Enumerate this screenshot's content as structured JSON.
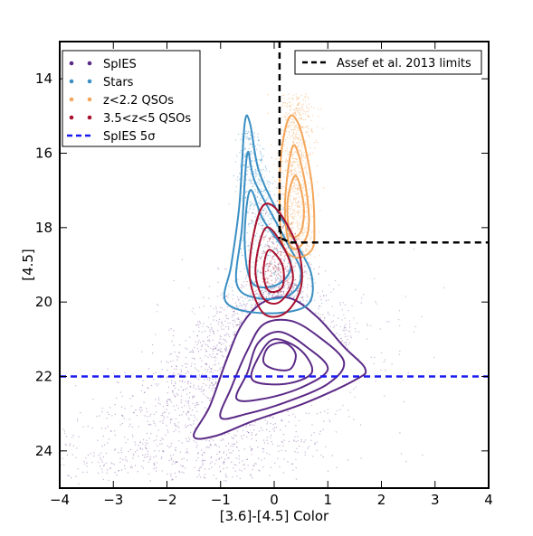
{
  "chart_data": {
    "type": "scatter",
    "title": "",
    "xlabel": "[3.6]-[4.5] Color",
    "ylabel": "[4.5]",
    "xlim": [
      -4,
      4
    ],
    "ylim": [
      25,
      13
    ],
    "y_inverted": true,
    "grid": false,
    "x_ticks": [
      -4,
      -3,
      -2,
      -1,
      0,
      1,
      2,
      3,
      4
    ],
    "x_tick_labels": [
      "−4",
      "−3",
      "−2",
      "−1",
      "0",
      "1",
      "2",
      "3",
      "4"
    ],
    "y_ticks": [
      14,
      16,
      18,
      20,
      22,
      24
    ],
    "y_tick_labels": [
      "14",
      "16",
      "18",
      "20",
      "22",
      "24"
    ],
    "legend_left": {
      "placement": "top-left",
      "entries": [
        {
          "label": "SpIES",
          "color": "#5b2a86",
          "marker": "dots"
        },
        {
          "label": "Stars",
          "color": "#3a8fc4",
          "marker": "dots"
        },
        {
          "label": "z<2.2 QSOs",
          "color": "#f4a65a",
          "marker": "dots"
        },
        {
          "label": "3.5<z<5 QSOs",
          "color": "#a8102e",
          "marker": "dots"
        },
        {
          "label": "SpIES 5σ",
          "color": "#1a1af0",
          "marker": "dashed"
        }
      ]
    },
    "legend_right": {
      "placement": "top-right",
      "entries": [
        {
          "label": "Assef et al. 2013 limits",
          "color": "#000000",
          "marker": "dashed"
        }
      ]
    },
    "series": [
      {
        "name": "SpIES",
        "color": "#5b2a86",
        "kind": "density-contours",
        "contours": [
          [
            [
              -1.5,
              23.6
            ],
            [
              -1.2,
              22.8
            ],
            [
              -0.9,
              21.6
            ],
            [
              -0.6,
              20.6
            ],
            [
              -0.2,
              20.0
            ],
            [
              0.3,
              19.9
            ],
            [
              0.8,
              20.4
            ],
            [
              1.3,
              21.2
            ],
            [
              1.7,
              21.8
            ],
            [
              1.5,
              22.1
            ],
            [
              0.6,
              22.7
            ],
            [
              -0.4,
              23.2
            ],
            [
              -1.1,
              23.6
            ]
          ],
          [
            [
              -1.0,
              23.1
            ],
            [
              -0.8,
              22.3
            ],
            [
              -0.5,
              21.3
            ],
            [
              -0.2,
              20.6
            ],
            [
              0.3,
              20.5
            ],
            [
              0.8,
              20.9
            ],
            [
              1.3,
              21.6
            ],
            [
              1.0,
              22.2
            ],
            [
              0.2,
              22.7
            ],
            [
              -0.5,
              23.0
            ]
          ],
          [
            [
              -0.7,
              22.6
            ],
            [
              -0.5,
              21.9
            ],
            [
              -0.3,
              21.1
            ],
            [
              0.1,
              20.8
            ],
            [
              0.6,
              21.2
            ],
            [
              1.0,
              21.8
            ],
            [
              0.5,
              22.3
            ],
            [
              -0.2,
              22.6
            ]
          ],
          [
            [
              -0.4,
              22.1
            ],
            [
              -0.3,
              21.5
            ],
            [
              0.0,
              21.0
            ],
            [
              0.5,
              21.3
            ],
            [
              0.7,
              21.9
            ],
            [
              0.2,
              22.2
            ]
          ],
          [
            [
              -0.2,
              21.6
            ],
            [
              -0.1,
              21.2
            ],
            [
              0.2,
              21.1
            ],
            [
              0.4,
              21.4
            ],
            [
              0.3,
              21.8
            ],
            [
              0.0,
              21.8
            ]
          ]
        ]
      },
      {
        "name": "Stars",
        "color": "#3a8fc4",
        "kind": "density-contours",
        "contours": [
          [
            [
              -0.55,
              15.2
            ],
            [
              -0.45,
              15.2
            ],
            [
              -0.3,
              16.4
            ],
            [
              0.0,
              17.4
            ],
            [
              0.4,
              18.4
            ],
            [
              0.7,
              19.3
            ],
            [
              0.6,
              20.1
            ],
            [
              -0.2,
              20.3
            ],
            [
              -0.9,
              20.0
            ],
            [
              -0.8,
              19.0
            ],
            [
              -0.65,
              17.4
            ]
          ],
          [
            [
              -0.5,
              16.0
            ],
            [
              -0.35,
              16.8
            ],
            [
              0.2,
              18.3
            ],
            [
              0.5,
              19.2
            ],
            [
              0.3,
              19.8
            ],
            [
              -0.3,
              19.9
            ],
            [
              -0.7,
              19.5
            ],
            [
              -0.6,
              18.0
            ]
          ],
          [
            [
              -0.45,
              17.0
            ],
            [
              -0.2,
              17.8
            ],
            [
              0.3,
              18.9
            ],
            [
              0.1,
              19.5
            ],
            [
              -0.4,
              19.5
            ],
            [
              -0.55,
              18.4
            ]
          ]
        ]
      },
      {
        "name": "z<2.2 QSOs",
        "color": "#f4a65a",
        "kind": "density-contours",
        "contours": [
          [
            [
              0.3,
              15.0
            ],
            [
              0.5,
              15.4
            ],
            [
              0.7,
              16.8
            ],
            [
              0.75,
              18.0
            ],
            [
              0.7,
              18.6
            ],
            [
              0.4,
              18.8
            ],
            [
              0.15,
              18.4
            ],
            [
              0.1,
              17.0
            ],
            [
              0.15,
              15.8
            ]
          ],
          [
            [
              0.35,
              15.8
            ],
            [
              0.55,
              16.6
            ],
            [
              0.65,
              17.8
            ],
            [
              0.55,
              18.4
            ],
            [
              0.3,
              18.5
            ],
            [
              0.2,
              17.4
            ]
          ],
          [
            [
              0.4,
              16.6
            ],
            [
              0.55,
              17.4
            ],
            [
              0.5,
              18.1
            ],
            [
              0.3,
              18.2
            ],
            [
              0.25,
              17.3
            ]
          ]
        ]
      },
      {
        "name": "3.5<z<5 QSOs",
        "color": "#a8102e",
        "kind": "density-contours",
        "contours": [
          [
            [
              -0.2,
              17.4
            ],
            [
              0.1,
              17.6
            ],
            [
              0.45,
              18.6
            ],
            [
              0.5,
              19.6
            ],
            [
              0.2,
              20.3
            ],
            [
              -0.2,
              20.3
            ],
            [
              -0.45,
              19.4
            ],
            [
              -0.4,
              18.3
            ]
          ],
          [
            [
              -0.15,
              18.0
            ],
            [
              0.2,
              18.6
            ],
            [
              0.35,
              19.4
            ],
            [
              0.1,
              20.0
            ],
            [
              -0.2,
              19.9
            ],
            [
              -0.35,
              19.1
            ]
          ],
          [
            [
              -0.1,
              18.6
            ],
            [
              0.15,
              19.0
            ],
            [
              0.15,
              19.6
            ],
            [
              -0.1,
              19.7
            ],
            [
              -0.2,
              19.2
            ]
          ]
        ]
      }
    ],
    "reference_lines": [
      {
        "name": "SpIES 5σ",
        "orientation": "horizontal",
        "y": 22.0,
        "x_range": [
          -4,
          4
        ],
        "color": "#1a1af0",
        "style": "dashed"
      },
      {
        "name": "Assef et al. 2013 limits",
        "orientation": "vertical",
        "x": 0.1,
        "y_range": [
          13,
          18.3
        ],
        "color": "#000000",
        "style": "dashed"
      },
      {
        "name": "Assef et al. 2013 limits",
        "orientation": "curve",
        "points": [
          [
            0.1,
            18.0
          ],
          [
            0.15,
            18.3
          ],
          [
            0.3,
            18.4
          ]
        ],
        "color": "#000000",
        "style": "dashed"
      },
      {
        "name": "Assef et al. 2013 limits",
        "orientation": "horizontal",
        "y": 18.4,
        "x_range": [
          0.3,
          4
        ],
        "color": "#000000",
        "style": "dashed"
      }
    ]
  }
}
